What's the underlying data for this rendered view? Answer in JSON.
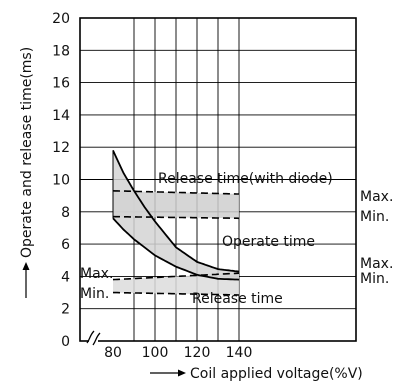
{
  "chart_data": {
    "type": "line",
    "title": "",
    "xlabel": "Coil applied voltage(%V)",
    "ylabel": "Operate and release time(ms)",
    "xlim": [
      75,
      142
    ],
    "ylim": [
      0,
      20
    ],
    "x_ticks": [
      80,
      100,
      120,
      140
    ],
    "y_ticks": [
      0,
      2,
      4,
      6,
      8,
      10,
      12,
      14,
      16,
      18,
      20
    ],
    "grid": true,
    "axis_break": "x",
    "series": [
      {
        "name": "Operate time Max.",
        "x": [
          80,
          85,
          90,
          95,
          100,
          110,
          120,
          130,
          140
        ],
        "y": [
          11.8,
          10.4,
          9.3,
          8.3,
          7.4,
          5.8,
          4.9,
          4.45,
          4.3
        ]
      },
      {
        "name": "Operate time Min.",
        "x": [
          80,
          85,
          90,
          95,
          100,
          110,
          120,
          130,
          140
        ],
        "y": [
          7.6,
          6.9,
          6.3,
          5.8,
          5.3,
          4.6,
          4.1,
          3.85,
          3.8
        ]
      },
      {
        "name": "Release time(with diode) Max.",
        "x": [
          80,
          140
        ],
        "y": [
          9.3,
          9.1
        ]
      },
      {
        "name": "Release time(with diode) Min.",
        "x": [
          80,
          140
        ],
        "y": [
          7.7,
          7.6
        ]
      },
      {
        "name": "Release time Max.",
        "x": [
          80,
          140
        ],
        "y": [
          3.8,
          4.2
        ]
      },
      {
        "name": "Release time Min.",
        "x": [
          80,
          140
        ],
        "y": [
          3.0,
          2.85
        ]
      }
    ],
    "annotations": {
      "release_diode": "Release time(with diode)",
      "operate": "Operate time",
      "release": "Release time",
      "max_right_top": "Max.",
      "min_right_top": "Min.",
      "max_right_mid": "Max.",
      "min_right_mid": "Min.",
      "max_left": "Max.",
      "min_left": "Min."
    }
  }
}
